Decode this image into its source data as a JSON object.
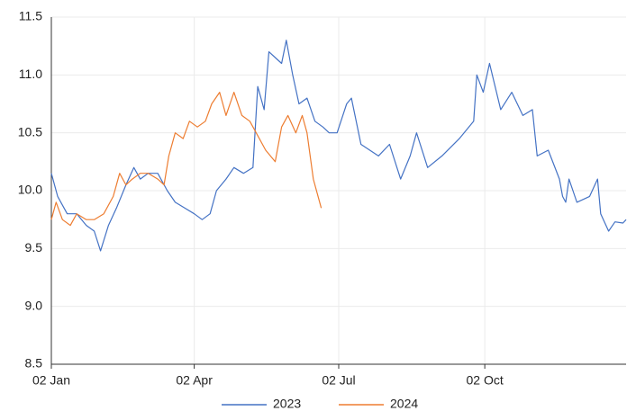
{
  "chart_data": {
    "type": "line",
    "xlim": [
      1,
      363
    ],
    "xticks": [
      {
        "value": 1,
        "label": "02 Jan"
      },
      {
        "value": 91,
        "label": "02 Apr"
      },
      {
        "value": 182,
        "label": "02 Jul"
      },
      {
        "value": 274,
        "label": "02 Oct"
      }
    ],
    "ylim": [
      8.5,
      11.5
    ],
    "yticks": [
      {
        "value": 8.5,
        "label": "8.5"
      },
      {
        "value": 9,
        "label": "9.0"
      },
      {
        "value": 9.5,
        "label": "9.5"
      },
      {
        "value": 10,
        "label": "10.0"
      },
      {
        "value": 10.5,
        "label": "10.5"
      },
      {
        "value": 11,
        "label": "11.0"
      },
      {
        "value": 11.5,
        "label": "11.5"
      }
    ],
    "grid": true,
    "legend": "bottom",
    "series": [
      {
        "name": "2023",
        "color": "#4472c4",
        "x": [
          1,
          5,
          11,
          17,
          23,
          28,
          32,
          37,
          42,
          48,
          53,
          57,
          62,
          68,
          74,
          79,
          85,
          91,
          96,
          101,
          105,
          111,
          116,
          122,
          128,
          131,
          135,
          138,
          142,
          146,
          149,
          153,
          157,
          162,
          167,
          172,
          176,
          181,
          187,
          190,
          196,
          207,
          214,
          221,
          227,
          231,
          238,
          247,
          258,
          267,
          269,
          273,
          277,
          284,
          291,
          298,
          304,
          307,
          314,
          321,
          323,
          325,
          327,
          332,
          340,
          345,
          347,
          352,
          356,
          361,
          363
        ],
        "values": [
          10.15,
          9.95,
          9.8,
          9.8,
          9.7,
          9.65,
          9.48,
          9.7,
          9.85,
          10.05,
          10.2,
          10.1,
          10.15,
          10.15,
          10.0,
          9.9,
          9.85,
          9.8,
          9.75,
          9.8,
          10.0,
          10.1,
          10.2,
          10.15,
          10.2,
          10.9,
          10.7,
          11.2,
          11.15,
          11.1,
          11.3,
          11.0,
          10.75,
          10.8,
          10.6,
          10.55,
          10.5,
          10.5,
          10.75,
          10.8,
          10.4,
          10.3,
          10.4,
          10.1,
          10.3,
          10.5,
          10.2,
          10.3,
          10.45,
          10.6,
          11.0,
          10.85,
          11.1,
          10.7,
          10.85,
          10.65,
          10.7,
          10.3,
          10.35,
          10.1,
          9.95,
          9.9,
          10.1,
          9.9,
          9.95,
          10.1,
          9.8,
          9.65,
          9.73,
          9.72,
          9.75
        ]
      },
      {
        "name": "2024",
        "color": "#ed7d31",
        "x": [
          1,
          4,
          8,
          13,
          17,
          23,
          28,
          34,
          40,
          44,
          48,
          52,
          57,
          62,
          68,
          72,
          75,
          79,
          84,
          88,
          93,
          98,
          102,
          107,
          111,
          116,
          121,
          126,
          130,
          136,
          142,
          146,
          150,
          155,
          159,
          162,
          166,
          171
        ],
        "values": [
          9.75,
          9.9,
          9.75,
          9.7,
          9.8,
          9.75,
          9.75,
          9.8,
          9.95,
          10.15,
          10.05,
          10.1,
          10.15,
          10.15,
          10.1,
          10.05,
          10.3,
          10.5,
          10.45,
          10.6,
          10.55,
          10.6,
          10.75,
          10.85,
          10.65,
          10.85,
          10.65,
          10.6,
          10.5,
          10.35,
          10.25,
          10.55,
          10.65,
          10.5,
          10.65,
          10.5,
          10.1,
          9.85
        ]
      }
    ]
  }
}
